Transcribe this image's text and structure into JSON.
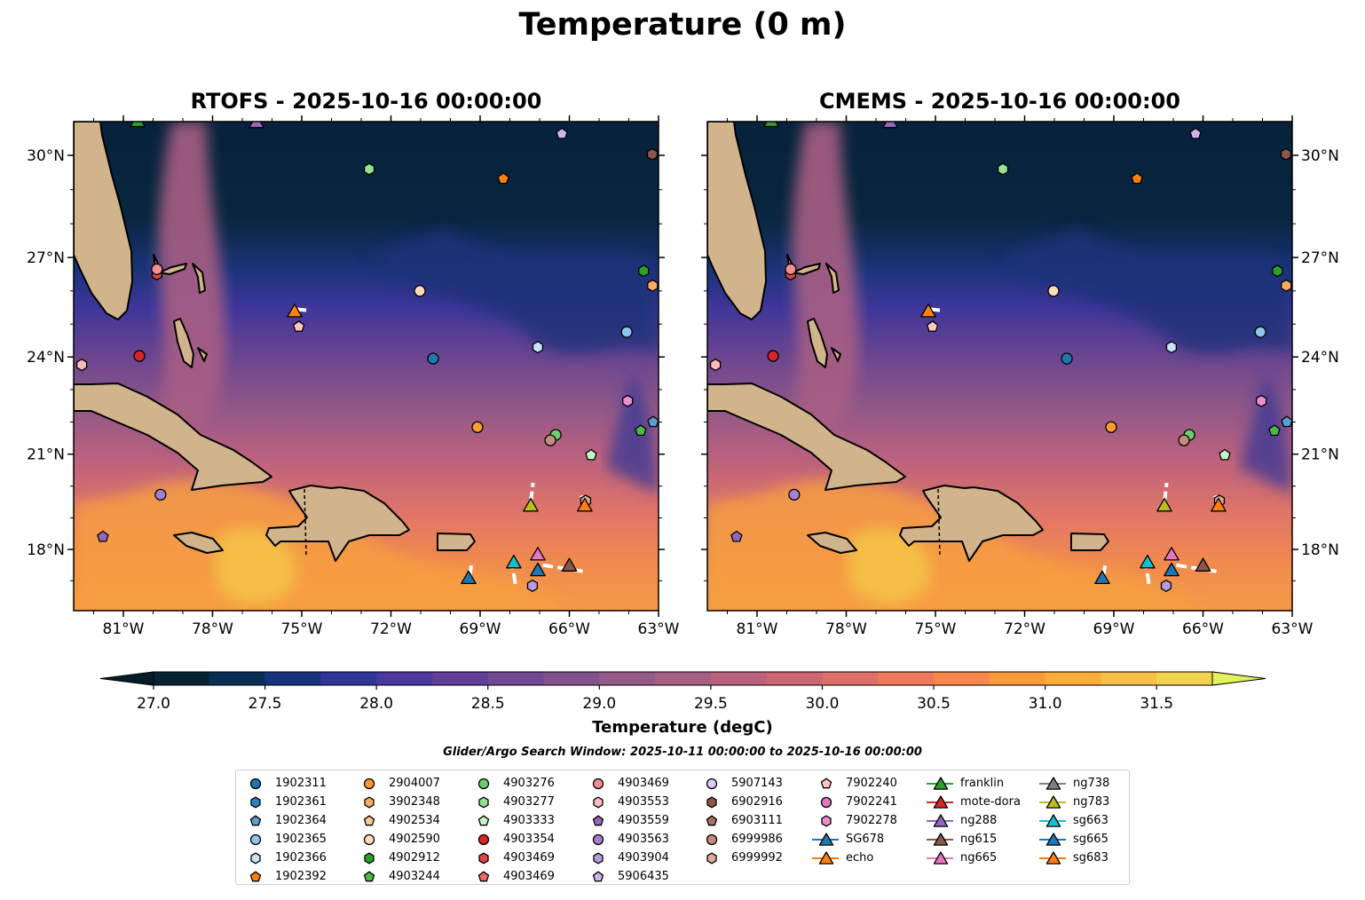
{
  "title": "Temperature (0 m)",
  "panels": [
    {
      "title": "RTOFS - 2025-10-16 00:00:00"
    },
    {
      "title": "CMEMS - 2025-10-16 00:00:00"
    }
  ],
  "colorbar": {
    "label": "Temperature (degC)",
    "min": 27.0,
    "max": 31.75,
    "step": 0.25,
    "ticks": [
      "27.0",
      "27.5",
      "28.0",
      "28.5",
      "29.0",
      "29.5",
      "30.0",
      "30.5",
      "31.0",
      "31.5"
    ],
    "colors": [
      "#062233",
      "#0a2d55",
      "#1a3380",
      "#2f3598",
      "#4a37a0",
      "#5f3f98",
      "#714892",
      "#82528c",
      "#945a88",
      "#a85f84",
      "#bb617e",
      "#cc6675",
      "#de6f69",
      "#ec7a5b",
      "#f5884a",
      "#fa9a3c",
      "#fbad3c",
      "#f8c048",
      "#f2d350"
    ],
    "under_color": "#041b28",
    "over_color": "#e3f15e",
    "extend": "both"
  },
  "search_window": "Glider/Argo Search Window: 2025-10-11 00:00:00 to 2025-10-16 00:00:00",
  "chart_data": {
    "type": "map",
    "extent": {
      "lon": [
        -82.67,
        -63.0
      ],
      "lat": [
        16.1,
        31.0
      ]
    },
    "lon_ticks": [
      {
        "v": -81,
        "label": "81°W"
      },
      {
        "v": -78,
        "label": "78°W"
      },
      {
        "v": -75,
        "label": "75°W"
      },
      {
        "v": -72,
        "label": "72°W"
      },
      {
        "v": -69,
        "label": "69°W"
      },
      {
        "v": -66,
        "label": "66°W"
      },
      {
        "v": -63,
        "label": "63°W"
      }
    ],
    "lat_ticks": [
      {
        "v": 30,
        "label": "30°N"
      },
      {
        "v": 27,
        "label": "27°N"
      },
      {
        "v": 24,
        "label": "24°N"
      },
      {
        "v": 21,
        "label": "21°N"
      },
      {
        "v": 18,
        "label": "18°N"
      }
    ],
    "legend": [
      {
        "label": "1902311",
        "shape": "circle",
        "color": "#1f77b4"
      },
      {
        "label": "1902361",
        "shape": "hexagon",
        "color": "#3282c0"
      },
      {
        "label": "1902364",
        "shape": "pentagon",
        "color": "#5a9fd4"
      },
      {
        "label": "1902365",
        "shape": "circle",
        "color": "#8ec6ea"
      },
      {
        "label": "1902366",
        "shape": "hexagon",
        "color": "#c6e4f7"
      },
      {
        "label": "1902392",
        "shape": "pentagon",
        "color": "#ff7f0e"
      },
      {
        "label": "2904007",
        "shape": "circle",
        "color": "#ff9933"
      },
      {
        "label": "3902348",
        "shape": "hexagon",
        "color": "#ffaa66"
      },
      {
        "label": "4902534",
        "shape": "pentagon",
        "color": "#ffc793"
      },
      {
        "label": "4902590",
        "shape": "circle",
        "color": "#ffdcbc"
      },
      {
        "label": "4902912",
        "shape": "hexagon",
        "color": "#2ca02c"
      },
      {
        "label": "4903244",
        "shape": "pentagon",
        "color": "#4cb84c"
      },
      {
        "label": "4903276",
        "shape": "circle",
        "color": "#6ccf6c"
      },
      {
        "label": "4903277",
        "shape": "hexagon",
        "color": "#94e094"
      },
      {
        "label": "4903333",
        "shape": "pentagon",
        "color": "#c4f7c4"
      },
      {
        "label": "4903354",
        "shape": "circle",
        "color": "#d62728"
      },
      {
        "label": "4903469",
        "shape": "hexagon",
        "color": "#e04848"
      },
      {
        "label": "4903469",
        "shape": "pentagon",
        "color": "#ea6a6a"
      },
      {
        "label": "4903469",
        "shape": "circle",
        "color": "#f09090"
      },
      {
        "label": "4903553",
        "shape": "hexagon",
        "color": "#fbbcbc"
      },
      {
        "label": "4903559",
        "shape": "pentagon",
        "color": "#9467bd"
      },
      {
        "label": "4903563",
        "shape": "circle",
        "color": "#a57fd0"
      },
      {
        "label": "4903904",
        "shape": "hexagon",
        "color": "#b89ae0"
      },
      {
        "label": "5906435",
        "shape": "pentagon",
        "color": "#cdb3f0"
      },
      {
        "label": "5907143",
        "shape": "circle",
        "color": "#e0c8fc"
      },
      {
        "label": "6902916",
        "shape": "hexagon",
        "color": "#8c564b"
      },
      {
        "label": "6903111",
        "shape": "pentagon",
        "color": "#a87060"
      },
      {
        "label": "6999986",
        "shape": "circle",
        "color": "#c48c7c"
      },
      {
        "label": "6999992",
        "shape": "hexagon",
        "color": "#e0aa98"
      },
      {
        "label": "7902240",
        "shape": "pentagon",
        "color": "#fcc8bc"
      },
      {
        "label": "7902241",
        "shape": "circle",
        "color": "#e377c2"
      },
      {
        "label": "7902278",
        "shape": "hexagon",
        "color": "#ec90d0"
      },
      {
        "label": "SG678",
        "shape": "triangle",
        "color": "#1f77b4"
      },
      {
        "label": "echo",
        "shape": "triangle",
        "color": "#ff7f0e"
      },
      {
        "label": "franklin",
        "shape": "triangle",
        "color": "#2ca02c"
      },
      {
        "label": "mote-dora",
        "shape": "triangle",
        "color": "#d62728"
      },
      {
        "label": "ng288",
        "shape": "triangle",
        "color": "#9467bd"
      },
      {
        "label": "ng615",
        "shape": "triangle",
        "color": "#8c564b"
      },
      {
        "label": "ng665",
        "shape": "triangle",
        "color": "#e377c2"
      },
      {
        "label": "ng738",
        "shape": "triangle",
        "color": "#7f7f7f"
      },
      {
        "label": "ng783",
        "shape": "triangle",
        "color": "#bcbd22"
      },
      {
        "label": "sg663",
        "shape": "triangle",
        "color": "#17becf"
      },
      {
        "label": "sg665",
        "shape": "triangle",
        "color": "#1f77b4"
      },
      {
        "label": "sg683",
        "shape": "triangle",
        "color": "#ff7f0e"
      }
    ],
    "points": [
      [
        36,
        -76.52,
        30.97
      ],
      [
        34,
        -80.52,
        31.0
      ],
      [
        23,
        -66.25,
        30.62
      ],
      [
        25,
        -63.21,
        30.03
      ],
      [
        13,
        -72.73,
        29.6
      ],
      [
        5,
        -68.22,
        29.32
      ],
      [
        16,
        -79.87,
        26.5
      ],
      [
        18,
        -79.87,
        26.65
      ],
      [
        10,
        -63.5,
        26.6
      ],
      [
        7,
        -63.2,
        26.16
      ],
      [
        9,
        -71.03,
        26.0
      ],
      [
        33,
        -75.24,
        25.4
      ],
      [
        29,
        -75.1,
        24.92
      ],
      [
        3,
        -64.07,
        24.76
      ],
      [
        4,
        -67.06,
        24.3
      ],
      [
        0,
        -70.58,
        23.95
      ],
      [
        15,
        -80.46,
        24.03
      ],
      [
        19,
        -82.4,
        23.76
      ],
      [
        31,
        -64.04,
        22.65
      ],
      [
        2,
        -63.18,
        22.0
      ],
      [
        11,
        -63.6,
        21.73
      ],
      [
        6,
        -69.09,
        21.84
      ],
      [
        12,
        -66.46,
        21.6
      ],
      [
        27,
        -66.64,
        21.43
      ],
      [
        14,
        -65.27,
        20.97
      ],
      [
        21,
        -79.75,
        19.73
      ],
      [
        20,
        -81.69,
        18.4
      ],
      [
        28,
        -65.45,
        19.54
      ],
      [
        43,
        -65.48,
        19.4
      ],
      [
        40,
        -67.3,
        19.4
      ],
      [
        38,
        -67.06,
        17.85
      ],
      [
        41,
        -67.87,
        17.6
      ],
      [
        37,
        -66.0,
        17.5
      ],
      [
        42,
        -67.06,
        17.35
      ],
      [
        32,
        -69.39,
        17.1
      ],
      [
        22,
        -67.24,
        16.84
      ]
    ],
    "tracks": [
      [
        [
          -67.3,
          19.5
        ],
        [
          -67.22,
          20.1
        ]
      ],
      [
        [
          -69.35,
          17.15
        ],
        [
          -69.28,
          17.6
        ]
      ],
      [
        [
          -67.82,
          16.9
        ],
        [
          -67.92,
          17.55
        ]
      ],
      [
        [
          -66.9,
          17.5
        ],
        [
          -65.55,
          17.3
        ]
      ],
      [
        [
          -75.2,
          25.45
        ],
        [
          -74.85,
          25.42
        ]
      ],
      [
        [
          -65.5,
          19.5
        ],
        [
          -65.6,
          19.7
        ]
      ]
    ]
  }
}
